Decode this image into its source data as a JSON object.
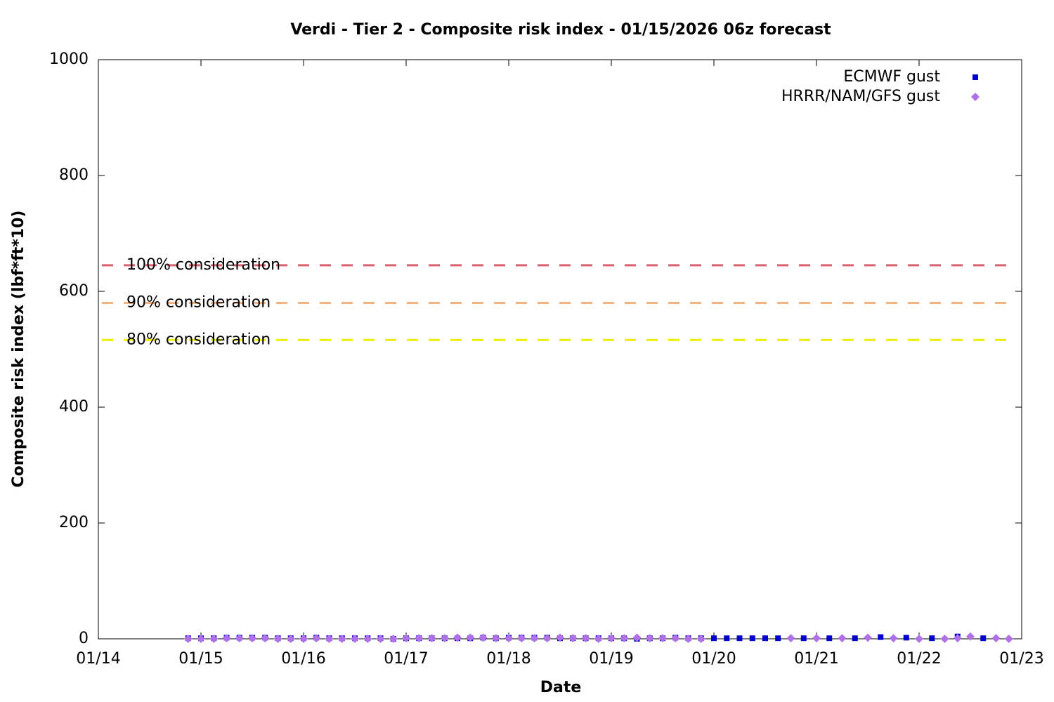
{
  "chart_data": {
    "type": "scatter",
    "title": "Verdi - Tier 2 - Composite risk index - 01/15/2026 06z forecast",
    "x_label": "Date",
    "y_label": "Composite risk index (lbf*ft*10)",
    "xlim": [
      14,
      23
    ],
    "xticks": [
      {
        "value": 14,
        "label": "01/14"
      },
      {
        "value": 15,
        "label": "01/15"
      },
      {
        "value": 16,
        "label": "01/16"
      },
      {
        "value": 17,
        "label": "01/17"
      },
      {
        "value": 18,
        "label": "01/18"
      },
      {
        "value": 19,
        "label": "01/19"
      },
      {
        "value": 20,
        "label": "01/20"
      },
      {
        "value": 21,
        "label": "01/21"
      },
      {
        "value": 22,
        "label": "01/22"
      },
      {
        "value": 23,
        "label": "01/23"
      }
    ],
    "ylim": [
      0,
      1000
    ],
    "yticks": [
      0,
      200,
      400,
      600,
      800,
      1000
    ],
    "legend": "top-right",
    "thresholds": [
      {
        "label": "100% consideration",
        "value": 645,
        "color": "#d9606f"
      },
      {
        "label": "90% consideration",
        "value": 580,
        "color": "#f4b27c"
      },
      {
        "label": "80% consideration",
        "value": 516,
        "color": "#eeee00"
      }
    ],
    "series": [
      {
        "name": "ECMWF gust",
        "color": "#0000cc",
        "marker": "square",
        "x": [
          14.875,
          15,
          15.125,
          15.25,
          15.375,
          15.5,
          15.625,
          15.75,
          15.875,
          16,
          16.125,
          16.25,
          16.375,
          16.5,
          16.625,
          16.75,
          16.875,
          17,
          17.125,
          17.25,
          17.375,
          17.5,
          17.625,
          17.75,
          17.875,
          18,
          18.125,
          18.25,
          18.375,
          18.5,
          18.625,
          18.75,
          18.875,
          19,
          19.125,
          19.25,
          19.375,
          19.5,
          19.625,
          19.75,
          19.875,
          20,
          20.125,
          20.25,
          20.375,
          20.5,
          20.625,
          20.875,
          21.125,
          21.375,
          21.625,
          21.875,
          22.125,
          22.375,
          22.625
        ],
        "values": [
          1,
          1,
          1,
          2,
          2,
          2,
          2,
          1,
          1,
          1,
          2,
          1,
          1,
          1,
          1,
          1,
          0,
          1,
          1,
          1,
          1,
          1,
          1,
          2,
          1,
          2,
          2,
          2,
          2,
          1,
          1,
          1,
          1,
          1,
          1,
          0,
          1,
          1,
          2,
          1,
          1,
          1,
          1,
          1,
          1,
          1,
          1,
          1,
          1,
          1,
          3,
          2,
          1,
          4,
          1
        ]
      },
      {
        "name": "HRRR/NAM/GFS gust",
        "color": "#b070e8",
        "marker": "diamond",
        "x": [
          14.875,
          15,
          15.125,
          15.25,
          15.375,
          15.5,
          15.625,
          15.75,
          15.875,
          16,
          16.125,
          16.25,
          16.375,
          16.5,
          16.625,
          16.75,
          16.875,
          17,
          17.125,
          17.25,
          17.375,
          17.5,
          17.625,
          17.75,
          17.875,
          18,
          18.125,
          18.25,
          18.375,
          18.5,
          18.625,
          18.75,
          18.875,
          19,
          19.125,
          19.25,
          19.375,
          19.5,
          19.625,
          19.75,
          19.875,
          20.75,
          21,
          21.25,
          21.5,
          21.75,
          22,
          22.25,
          22.375,
          22.5,
          22.75,
          22.875
        ],
        "values": [
          0,
          0,
          0,
          1,
          1,
          1,
          1,
          0,
          0,
          0,
          1,
          0,
          0,
          0,
          0,
          0,
          0,
          1,
          1,
          1,
          1,
          2,
          2,
          2,
          1,
          1,
          1,
          1,
          1,
          2,
          1,
          1,
          0,
          1,
          1,
          2,
          1,
          1,
          1,
          0,
          0,
          1,
          1,
          1,
          2,
          1,
          0,
          0,
          1,
          4,
          1,
          0
        ]
      }
    ]
  }
}
